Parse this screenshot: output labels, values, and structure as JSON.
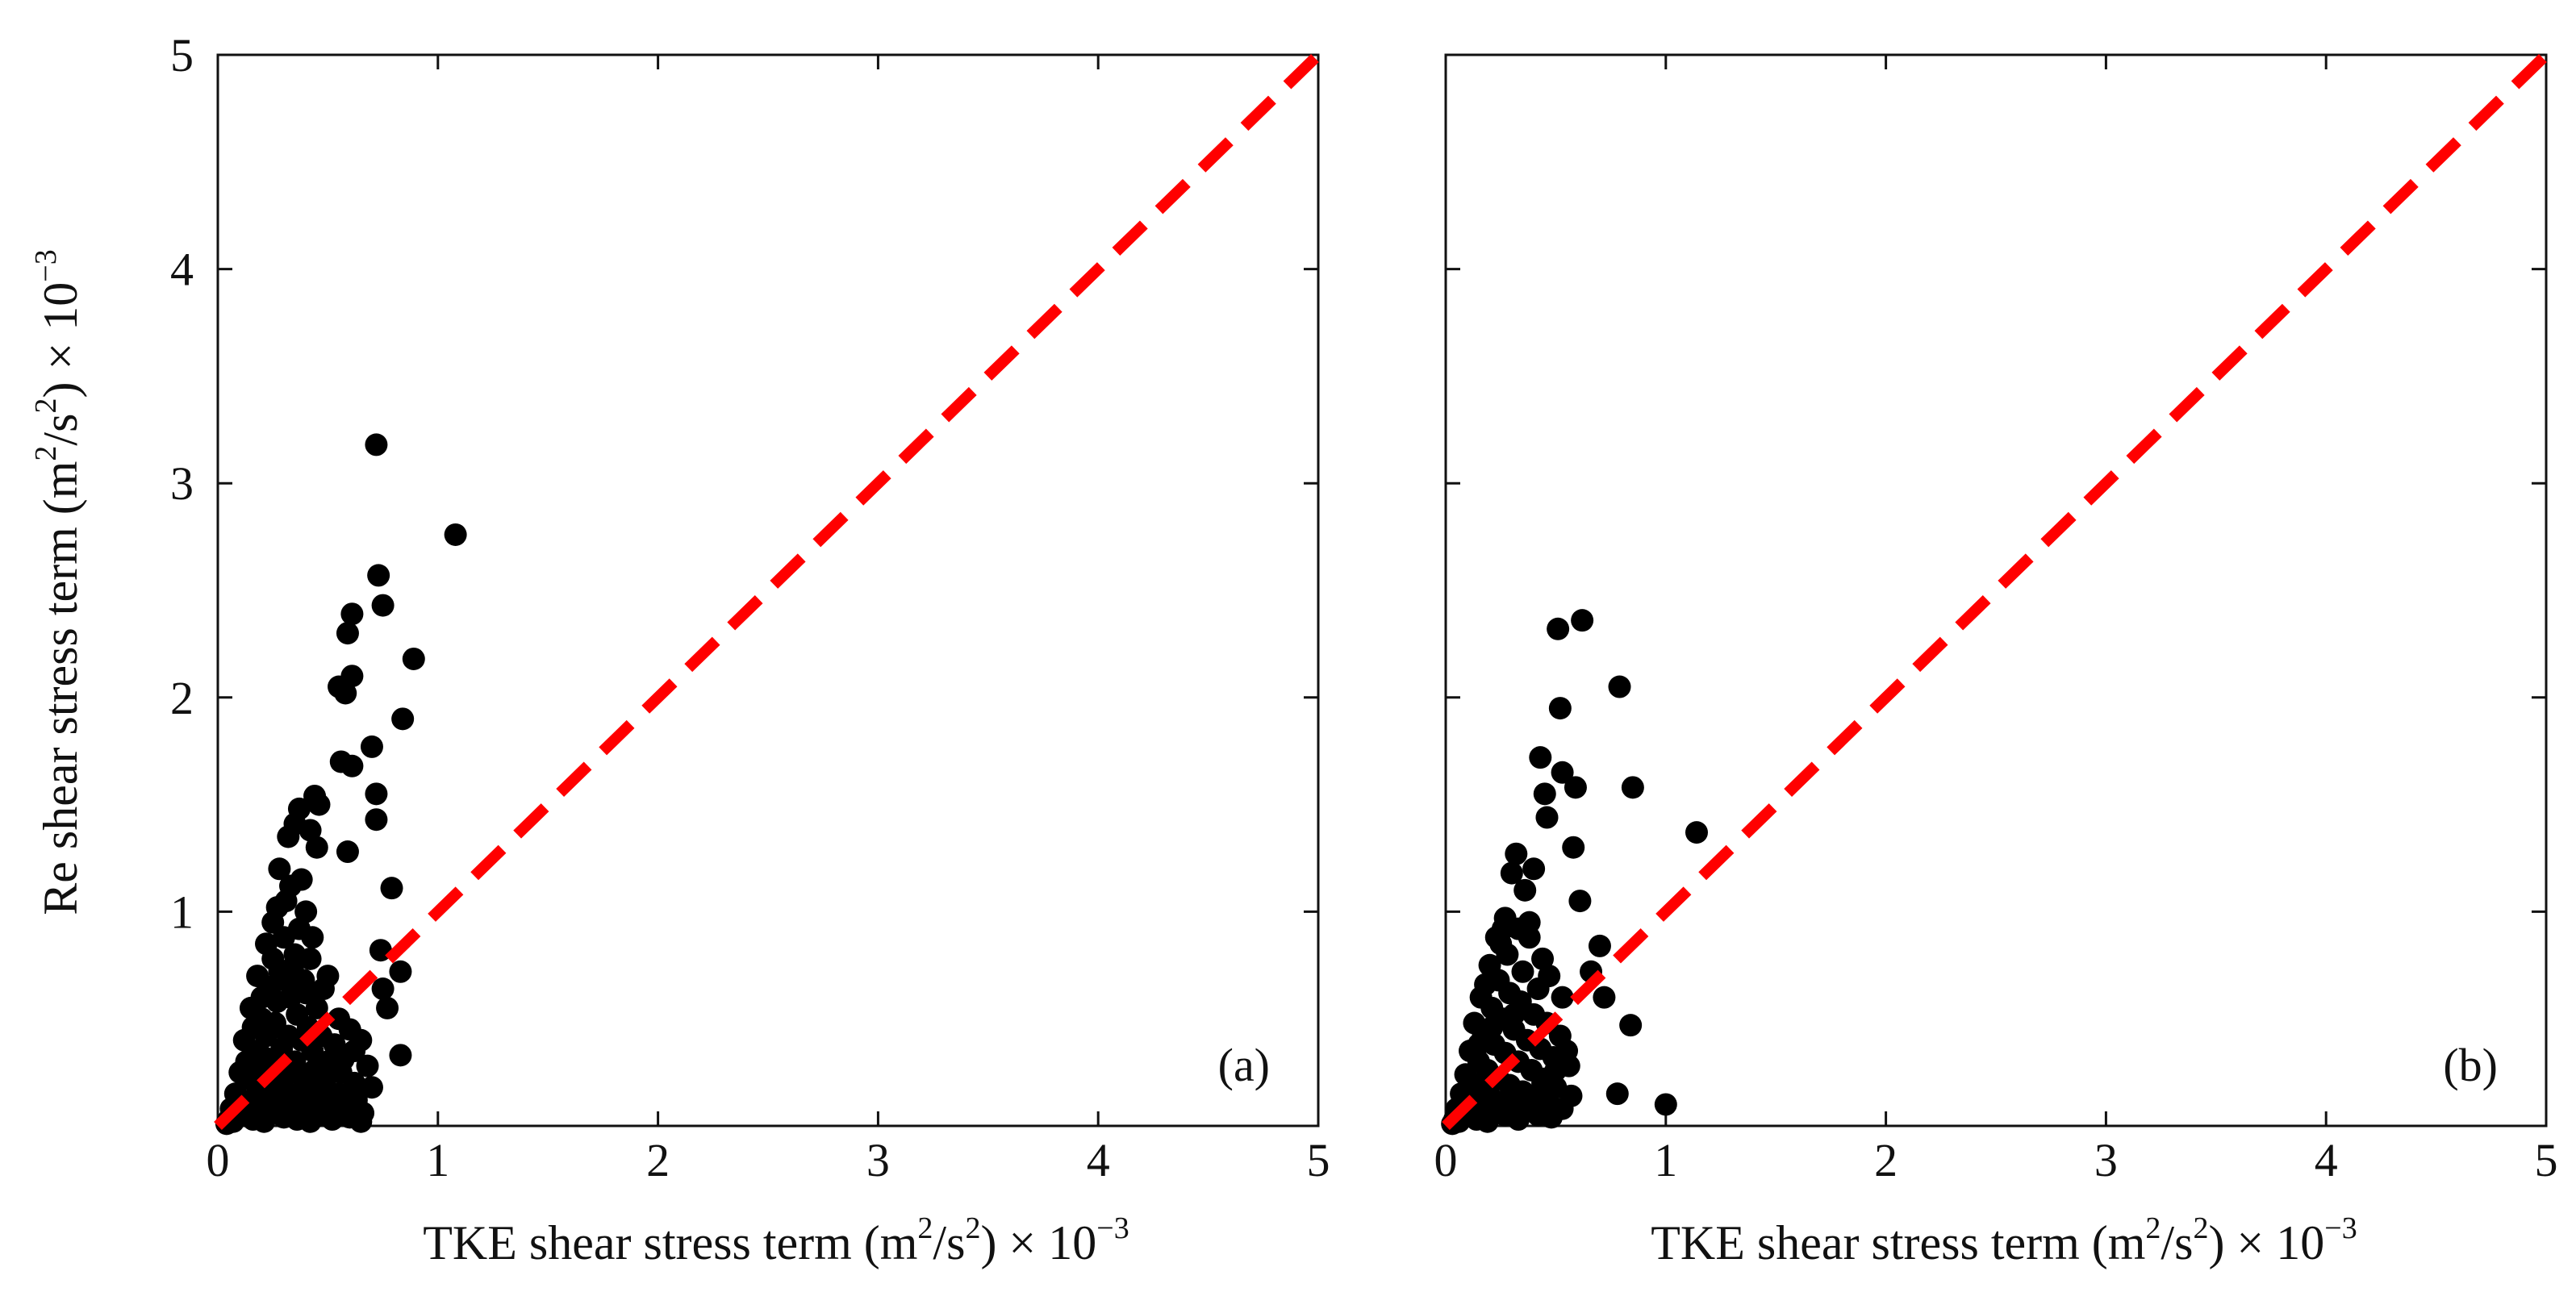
{
  "chart_data": [
    {
      "type": "scatter",
      "panel_label": "(a)",
      "xlabel": {
        "main": "TKE shear stress term (m",
        "sup1": "2",
        "mid": "/s",
        "sup2": "2",
        "end": ") × 10",
        "exp": "−3"
      },
      "ylabel": {
        "main": "Re shear stress term (m",
        "sup1": "2",
        "mid": "/s",
        "sup2": "2",
        "end": ") × 10",
        "exp": "−3"
      },
      "xlim": [
        0,
        5
      ],
      "ylim": [
        0,
        5
      ],
      "xticks": [
        "0",
        "1",
        "2",
        "3",
        "4",
        "5"
      ],
      "yticks": [
        "",
        "1",
        "2",
        "3",
        "4",
        "5"
      ],
      "reference_line": {
        "from": [
          0,
          0
        ],
        "to": [
          5,
          5
        ],
        "color": "#ff0000",
        "style": "dashed"
      },
      "marker_color": "#000000",
      "points": [
        [
          0.72,
          3.18
        ],
        [
          1.08,
          2.76
        ],
        [
          0.73,
          2.57
        ],
        [
          0.61,
          2.39
        ],
        [
          0.75,
          2.43
        ],
        [
          0.59,
          2.3
        ],
        [
          0.89,
          2.18
        ],
        [
          0.61,
          2.1
        ],
        [
          0.55,
          2.05
        ],
        [
          0.58,
          2.02
        ],
        [
          0.84,
          1.9
        ],
        [
          0.7,
          1.77
        ],
        [
          0.56,
          1.7
        ],
        [
          0.61,
          1.68
        ],
        [
          0.72,
          1.55
        ],
        [
          0.44,
          1.54
        ],
        [
          0.46,
          1.5
        ],
        [
          0.37,
          1.48
        ],
        [
          0.72,
          1.43
        ],
        [
          0.35,
          1.41
        ],
        [
          0.42,
          1.38
        ],
        [
          0.59,
          1.28
        ],
        [
          0.32,
          1.35
        ],
        [
          0.28,
          1.2
        ],
        [
          0.45,
          1.3
        ],
        [
          0.79,
          1.11
        ],
        [
          0.38,
          1.15
        ],
        [
          0.31,
          1.05
        ],
        [
          0.4,
          1.0
        ],
        [
          0.74,
          0.82
        ],
        [
          0.75,
          0.64
        ],
        [
          0.77,
          0.55
        ],
        [
          0.83,
          0.72
        ],
        [
          0.83,
          0.33
        ],
        [
          0.62,
          0.35
        ],
        [
          0.55,
          0.15
        ],
        [
          0.25,
          0.95
        ],
        [
          0.22,
          0.85
        ],
        [
          0.3,
          0.88
        ],
        [
          0.35,
          0.8
        ],
        [
          0.42,
          0.78
        ],
        [
          0.5,
          0.7
        ],
        [
          0.18,
          0.7
        ],
        [
          0.24,
          0.65
        ],
        [
          0.28,
          0.72
        ],
        [
          0.33,
          0.6
        ],
        [
          0.4,
          0.62
        ],
        [
          0.45,
          0.55
        ],
        [
          0.55,
          0.5
        ],
        [
          0.6,
          0.45
        ],
        [
          0.65,
          0.4
        ],
        [
          0.15,
          0.55
        ],
        [
          0.2,
          0.5
        ],
        [
          0.26,
          0.48
        ],
        [
          0.32,
          0.42
        ],
        [
          0.38,
          0.4
        ],
        [
          0.43,
          0.35
        ],
        [
          0.5,
          0.3
        ],
        [
          0.56,
          0.25
        ],
        [
          0.62,
          0.2
        ],
        [
          0.68,
          0.28
        ],
        [
          0.7,
          0.18
        ],
        [
          0.12,
          0.4
        ],
        [
          0.16,
          0.35
        ],
        [
          0.21,
          0.32
        ],
        [
          0.27,
          0.28
        ],
        [
          0.33,
          0.25
        ],
        [
          0.39,
          0.22
        ],
        [
          0.45,
          0.18
        ],
        [
          0.51,
          0.12
        ],
        [
          0.58,
          0.08
        ],
        [
          0.1,
          0.25
        ],
        [
          0.14,
          0.22
        ],
        [
          0.18,
          0.18
        ],
        [
          0.23,
          0.15
        ],
        [
          0.28,
          0.12
        ],
        [
          0.34,
          0.1
        ],
        [
          0.4,
          0.08
        ],
        [
          0.46,
          0.05
        ],
        [
          0.52,
          0.03
        ],
        [
          0.08,
          0.15
        ],
        [
          0.11,
          0.12
        ],
        [
          0.15,
          0.1
        ],
        [
          0.19,
          0.08
        ],
        [
          0.24,
          0.06
        ],
        [
          0.3,
          0.04
        ],
        [
          0.36,
          0.03
        ],
        [
          0.42,
          0.02
        ],
        [
          0.06,
          0.08
        ],
        [
          0.09,
          0.06
        ],
        [
          0.12,
          0.05
        ],
        [
          0.16,
          0.03
        ],
        [
          0.21,
          0.02
        ],
        [
          0.05,
          0.03
        ],
        [
          0.07,
          0.02
        ],
        [
          0.04,
          0.01
        ],
        [
          0.27,
          0.58
        ],
        [
          0.31,
          0.68
        ],
        [
          0.36,
          0.52
        ],
        [
          0.41,
          0.46
        ],
        [
          0.47,
          0.42
        ],
        [
          0.53,
          0.38
        ],
        [
          0.22,
          0.42
        ],
        [
          0.29,
          0.36
        ],
        [
          0.35,
          0.3
        ],
        [
          0.44,
          0.26
        ],
        [
          0.49,
          0.22
        ],
        [
          0.57,
          0.31
        ],
        [
          0.63,
          0.12
        ],
        [
          0.66,
          0.06
        ],
        [
          0.48,
          0.64
        ],
        [
          0.37,
          0.92
        ],
        [
          0.27,
          1.02
        ],
        [
          0.33,
          1.12
        ],
        [
          0.2,
          0.6
        ],
        [
          0.25,
          0.78
        ],
        [
          0.34,
          0.74
        ],
        [
          0.43,
          0.88
        ],
        [
          0.39,
          0.68
        ],
        [
          0.16,
          0.46
        ],
        [
          0.13,
          0.3
        ],
        [
          0.19,
          0.26
        ],
        [
          0.26,
          0.2
        ],
        [
          0.31,
          0.16
        ],
        [
          0.37,
          0.14
        ],
        [
          0.43,
          0.11
        ],
        [
          0.48,
          0.09
        ],
        [
          0.54,
          0.06
        ],
        [
          0.6,
          0.04
        ],
        [
          0.65,
          0.02
        ]
      ]
    },
    {
      "type": "scatter",
      "panel_label": "(b)",
      "xlabel": {
        "main": "TKE shear stress term (m",
        "sup1": "2",
        "mid": "/s",
        "sup2": "2",
        "end": ") × 10",
        "exp": "−3"
      },
      "ylabel": null,
      "xlim": [
        0,
        5
      ],
      "ylim": [
        0,
        5
      ],
      "xticks": [
        "0",
        "1",
        "2",
        "3",
        "4",
        "5"
      ],
      "yticks": [],
      "reference_line": {
        "from": [
          0,
          0
        ],
        "to": [
          5,
          5
        ],
        "color": "#ff0000",
        "style": "dashed"
      },
      "marker_color": "#000000",
      "points": [
        [
          0.62,
          2.36
        ],
        [
          0.51,
          2.32
        ],
        [
          0.79,
          2.05
        ],
        [
          0.52,
          1.95
        ],
        [
          0.43,
          1.72
        ],
        [
          0.53,
          1.65
        ],
        [
          0.59,
          1.58
        ],
        [
          0.85,
          1.58
        ],
        [
          0.45,
          1.55
        ],
        [
          0.46,
          1.44
        ],
        [
          1.14,
          1.37
        ],
        [
          0.58,
          1.3
        ],
        [
          0.32,
          1.27
        ],
        [
          0.4,
          1.2
        ],
        [
          0.3,
          1.18
        ],
        [
          0.36,
          1.1
        ],
        [
          0.61,
          1.05
        ],
        [
          0.27,
          0.97
        ],
        [
          0.33,
          0.92
        ],
        [
          0.38,
          0.88
        ],
        [
          0.25,
          0.85
        ],
        [
          0.7,
          0.84
        ],
        [
          0.44,
          0.78
        ],
        [
          0.66,
          0.72
        ],
        [
          0.72,
          0.6
        ],
        [
          0.84,
          0.47
        ],
        [
          0.78,
          0.15
        ],
        [
          1.0,
          0.1
        ],
        [
          0.55,
          0.35
        ],
        [
          0.2,
          0.75
        ],
        [
          0.24,
          0.68
        ],
        [
          0.29,
          0.62
        ],
        [
          0.34,
          0.58
        ],
        [
          0.4,
          0.52
        ],
        [
          0.46,
          0.48
        ],
        [
          0.52,
          0.42
        ],
        [
          0.16,
          0.6
        ],
        [
          0.21,
          0.55
        ],
        [
          0.26,
          0.5
        ],
        [
          0.31,
          0.45
        ],
        [
          0.37,
          0.4
        ],
        [
          0.43,
          0.36
        ],
        [
          0.49,
          0.32
        ],
        [
          0.56,
          0.28
        ],
        [
          0.13,
          0.48
        ],
        [
          0.17,
          0.42
        ],
        [
          0.22,
          0.38
        ],
        [
          0.27,
          0.34
        ],
        [
          0.33,
          0.3
        ],
        [
          0.39,
          0.26
        ],
        [
          0.45,
          0.22
        ],
        [
          0.5,
          0.18
        ],
        [
          0.11,
          0.35
        ],
        [
          0.15,
          0.3
        ],
        [
          0.19,
          0.26
        ],
        [
          0.24,
          0.22
        ],
        [
          0.29,
          0.19
        ],
        [
          0.35,
          0.16
        ],
        [
          0.41,
          0.13
        ],
        [
          0.47,
          0.1
        ],
        [
          0.09,
          0.24
        ],
        [
          0.12,
          0.2
        ],
        [
          0.16,
          0.17
        ],
        [
          0.2,
          0.14
        ],
        [
          0.25,
          0.11
        ],
        [
          0.3,
          0.09
        ],
        [
          0.36,
          0.07
        ],
        [
          0.42,
          0.05
        ],
        [
          0.48,
          0.04
        ],
        [
          0.07,
          0.15
        ],
        [
          0.1,
          0.12
        ],
        [
          0.13,
          0.1
        ],
        [
          0.17,
          0.08
        ],
        [
          0.22,
          0.06
        ],
        [
          0.27,
          0.05
        ],
        [
          0.33,
          0.03
        ],
        [
          0.05,
          0.08
        ],
        [
          0.08,
          0.06
        ],
        [
          0.11,
          0.05
        ],
        [
          0.14,
          0.03
        ],
        [
          0.19,
          0.02
        ],
        [
          0.04,
          0.03
        ],
        [
          0.06,
          0.02
        ],
        [
          0.03,
          0.01
        ],
        [
          0.23,
          0.88
        ],
        [
          0.28,
          0.8
        ],
        [
          0.35,
          0.72
        ],
        [
          0.42,
          0.64
        ],
        [
          0.18,
          0.66
        ],
        [
          0.31,
          0.52
        ],
        [
          0.53,
          0.6
        ],
        [
          0.47,
          0.7
        ],
        [
          0.38,
          0.95
        ],
        [
          0.26,
          0.92
        ],
        [
          0.5,
          0.26
        ],
        [
          0.57,
          0.14
        ],
        [
          0.53,
          0.08
        ],
        [
          0.44,
          0.2
        ],
        [
          0.21,
          0.46
        ],
        [
          0.15,
          0.38
        ]
      ]
    }
  ]
}
